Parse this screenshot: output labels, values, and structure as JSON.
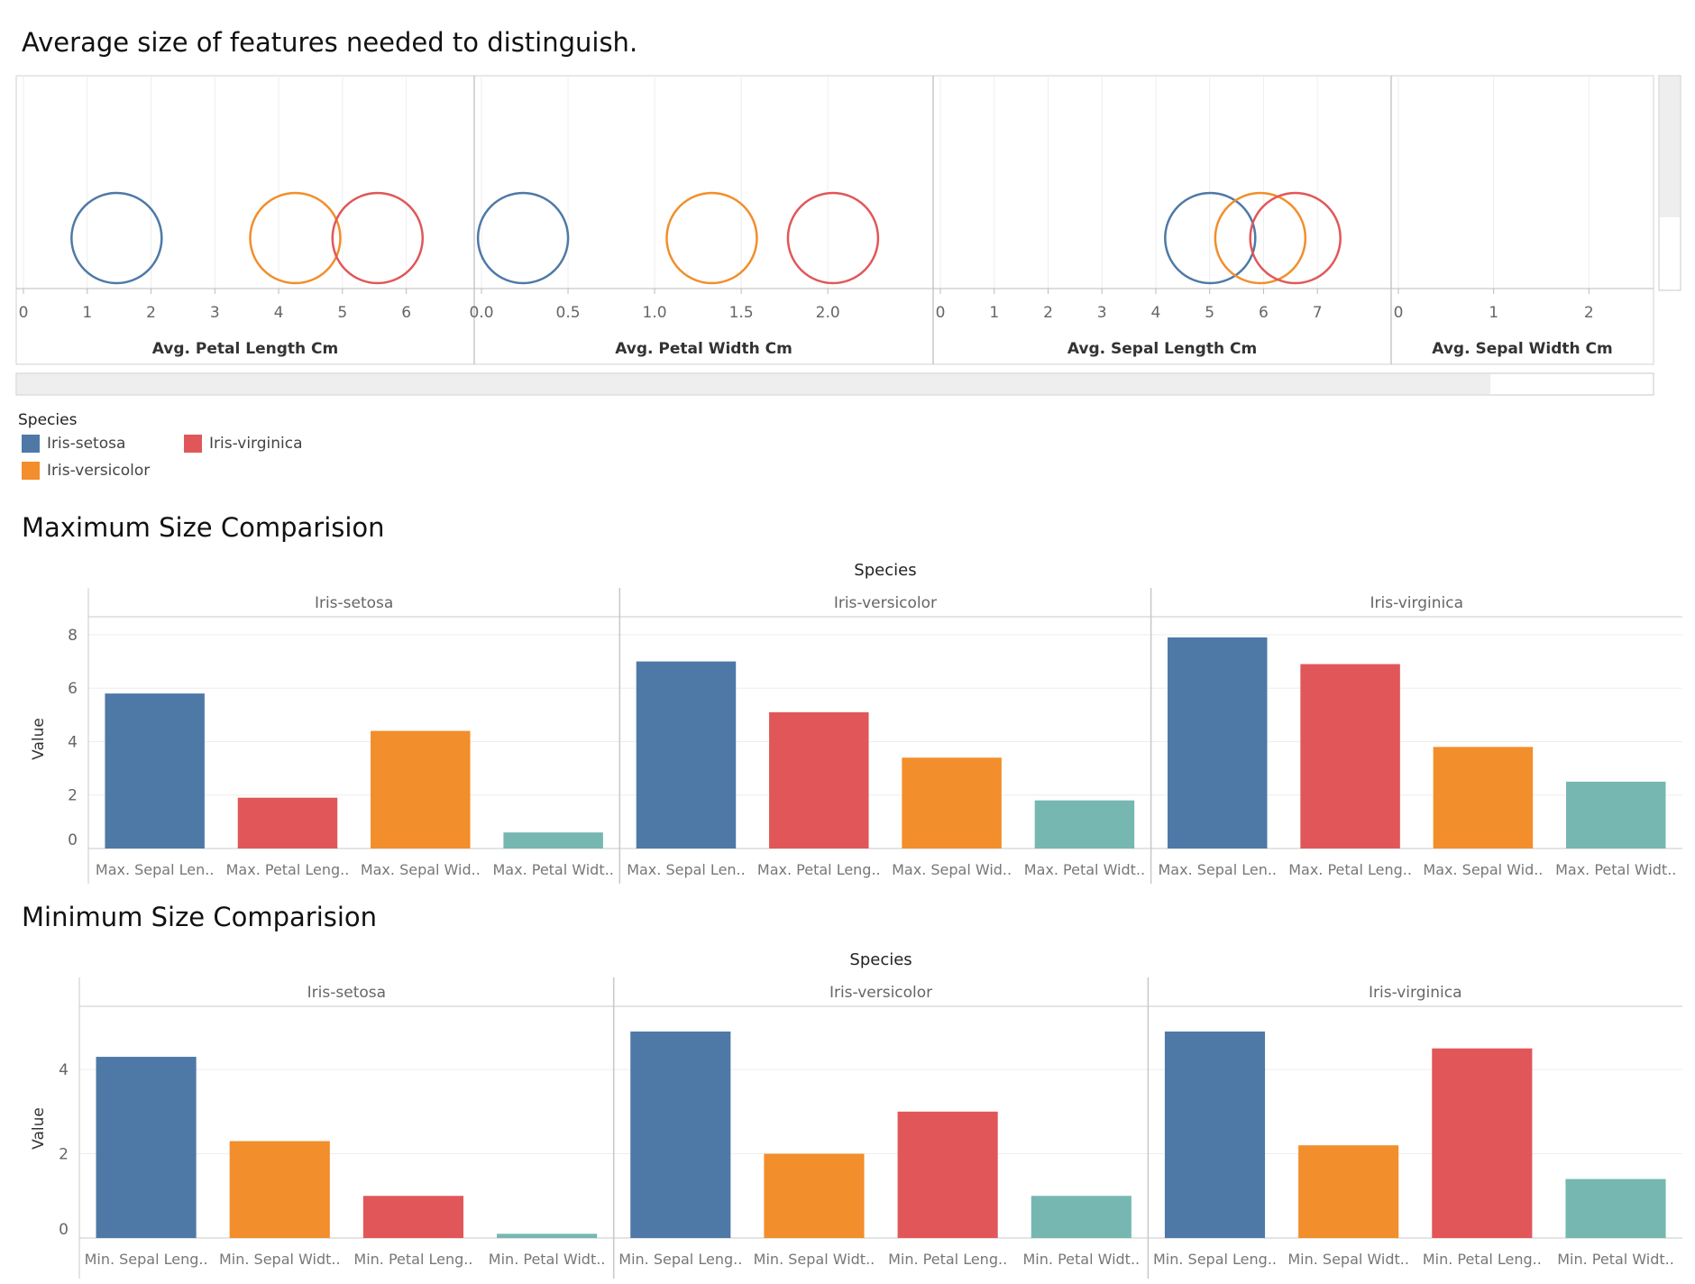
{
  "colors": {
    "setosa": "#4e79a7",
    "versicolor": "#f28e2b",
    "virginica": "#e15759",
    "teal": "#76b7b2",
    "grid": "#eeeeee",
    "axis": "#c8c8c8"
  },
  "avg_chart": {
    "title": "Average size of features needed to distinguish.",
    "legend": {
      "title": "Species",
      "items": [
        {
          "label": "Iris-setosa",
          "color": "#4e79a7"
        },
        {
          "label": "Iris-virginica",
          "color": "#e15759"
        },
        {
          "label": "Iris-versicolor",
          "color": "#f28e2b"
        }
      ]
    }
  },
  "max_chart": {
    "title": "Maximum Size Comparision",
    "header": "Species",
    "ylabel": "Value"
  },
  "min_chart": {
    "title": "Minimum Size Comparision",
    "header": "Species",
    "ylabel": "Value"
  },
  "chart_data": [
    {
      "type": "scatter",
      "title": "Average size of features needed to distinguish.",
      "panels": [
        {
          "xlabel": "Avg. Petal Length Cm",
          "ticks": [
            "0",
            "1",
            "2",
            "3",
            "4",
            "5",
            "6"
          ],
          "xlim": [
            0,
            6.5
          ],
          "points": [
            {
              "series": "Iris-setosa",
              "x": 1.46
            },
            {
              "series": "Iris-versicolor",
              "x": 4.26
            },
            {
              "series": "Iris-virginica",
              "x": 5.55
            }
          ]
        },
        {
          "xlabel": "Avg. Petal Width Cm",
          "ticks": [
            "0.0",
            "0.5",
            "1.0",
            "1.5",
            "2.0"
          ],
          "xlim": [
            0,
            2.4
          ],
          "points": [
            {
              "series": "Iris-setosa",
              "x": 0.24
            },
            {
              "series": "Iris-versicolor",
              "x": 1.33
            },
            {
              "series": "Iris-virginica",
              "x": 2.03
            }
          ]
        },
        {
          "xlabel": "Avg. Sepal Length Cm",
          "ticks": [
            "0",
            "1",
            "2",
            "3",
            "4",
            "5",
            "6",
            "7"
          ],
          "xlim": [
            0,
            7.7
          ],
          "points": [
            {
              "series": "Iris-setosa",
              "x": 5.01
            },
            {
              "series": "Iris-versicolor",
              "x": 5.94
            },
            {
              "series": "Iris-virginica",
              "x": 6.59
            }
          ]
        },
        {
          "xlabel": "Avg. Sepal Width Cm",
          "ticks": [
            "0",
            "1",
            "2"
          ],
          "xlim": [
            0,
            2.3
          ],
          "points": []
        }
      ],
      "legend": [
        "Iris-setosa",
        "Iris-virginica",
        "Iris-versicolor"
      ]
    },
    {
      "type": "bar",
      "title": "Maximum Size Comparision",
      "header": "Species",
      "ylabel": "Value",
      "ylim": [
        0,
        8.2
      ],
      "yticks": [
        0,
        2,
        4,
        6,
        8
      ],
      "panels": [
        {
          "name": "Iris-setosa",
          "categories": [
            "Max. Sepal Len..",
            "Max. Petal Leng..",
            "Max. Sepal Wid..",
            "Max. Petal Widt.."
          ],
          "values": [
            5.8,
            1.9,
            4.4,
            0.6
          ],
          "colors": [
            "#4e79a7",
            "#e15759",
            "#f28e2b",
            "#76b7b2"
          ]
        },
        {
          "name": "Iris-versicolor",
          "categories": [
            "Max. Sepal Len..",
            "Max. Petal Leng..",
            "Max. Sepal Wid..",
            "Max. Petal Widt.."
          ],
          "values": [
            7.0,
            5.1,
            3.4,
            1.8
          ],
          "colors": [
            "#4e79a7",
            "#e15759",
            "#f28e2b",
            "#76b7b2"
          ]
        },
        {
          "name": "Iris-virginica",
          "categories": [
            "Max. Sepal Len..",
            "Max. Petal Leng..",
            "Max. Sepal Wid..",
            "Max. Petal Widt.."
          ],
          "values": [
            7.9,
            6.9,
            3.8,
            2.5
          ],
          "colors": [
            "#4e79a7",
            "#e15759",
            "#f28e2b",
            "#76b7b2"
          ]
        }
      ]
    },
    {
      "type": "bar",
      "title": "Minimum Size Comparision",
      "header": "Species",
      "ylabel": "Value",
      "ylim": [
        0,
        5.2
      ],
      "yticks": [
        0,
        2,
        4
      ],
      "panels": [
        {
          "name": "Iris-setosa",
          "categories": [
            "Min. Sepal Leng..",
            "Min. Sepal Widt..",
            "Min. Petal Leng..",
            "Min. Petal Widt.."
          ],
          "values": [
            4.3,
            2.3,
            1.0,
            0.1
          ],
          "colors": [
            "#4e79a7",
            "#f28e2b",
            "#e15759",
            "#76b7b2"
          ]
        },
        {
          "name": "Iris-versicolor",
          "categories": [
            "Min. Sepal Leng..",
            "Min. Sepal Widt..",
            "Min. Petal Leng..",
            "Min. Petal Widt.."
          ],
          "values": [
            4.9,
            2.0,
            3.0,
            1.0
          ],
          "colors": [
            "#4e79a7",
            "#f28e2b",
            "#e15759",
            "#76b7b2"
          ]
        },
        {
          "name": "Iris-virginica",
          "categories": [
            "Min. Sepal Leng..",
            "Min. Sepal Widt..",
            "Min. Petal Leng..",
            "Min. Petal Widt.."
          ],
          "values": [
            4.9,
            2.2,
            4.5,
            1.4
          ],
          "colors": [
            "#4e79a7",
            "#f28e2b",
            "#e15759",
            "#76b7b2"
          ]
        }
      ]
    }
  ]
}
